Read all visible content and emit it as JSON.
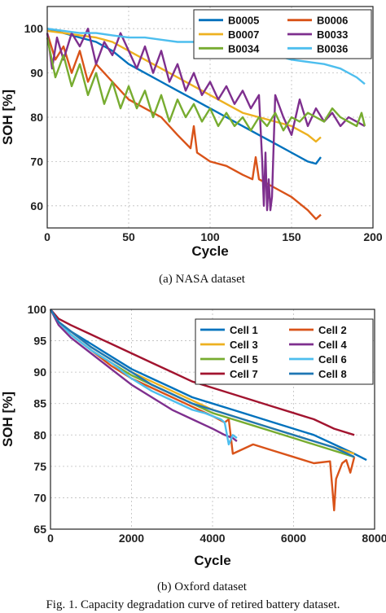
{
  "chart_data": [
    {
      "type": "line",
      "caption": "(a) NASA dataset",
      "xlabel": "Cycle",
      "ylabel": "SOH [%]",
      "xlim": [
        0,
        200
      ],
      "ylim": [
        55,
        105
      ],
      "xticks": [
        0,
        50,
        100,
        150,
        200
      ],
      "yticks": [
        60,
        70,
        80,
        90,
        100
      ],
      "grid": true,
      "legend": "top-right, 2 columns",
      "series": [
        {
          "name": "B0005",
          "color": "#0072BD",
          "x": [
            0,
            10,
            20,
            30,
            40,
            50,
            60,
            70,
            80,
            90,
            100,
            110,
            120,
            130,
            140,
            150,
            160,
            165,
            168
          ],
          "y": [
            100,
            99,
            98,
            97,
            95,
            92,
            90,
            88,
            86,
            84,
            82,
            80,
            78,
            76,
            74,
            72,
            70,
            69.5,
            71
          ]
        },
        {
          "name": "B0006",
          "color": "#D95319",
          "x": [
            0,
            5,
            10,
            15,
            20,
            25,
            30,
            40,
            50,
            60,
            70,
            80,
            88,
            90,
            92,
            100,
            110,
            120,
            126,
            128,
            130,
            140,
            150,
            160,
            165,
            168
          ],
          "y": [
            99,
            93,
            96,
            90,
            95,
            88,
            92,
            88,
            84,
            82,
            80,
            76,
            73,
            78,
            72,
            70,
            69,
            67,
            66,
            71,
            66,
            64,
            62,
            59,
            57,
            58
          ]
        },
        {
          "name": "B0007",
          "color": "#EDB120",
          "x": [
            0,
            10,
            20,
            30,
            40,
            50,
            60,
            70,
            80,
            90,
            100,
            110,
            120,
            130,
            140,
            150,
            160,
            165,
            168
          ],
          "y": [
            99.5,
            99,
            98.5,
            98,
            97,
            95,
            93,
            91,
            89,
            87,
            85,
            83,
            81,
            80,
            79,
            78,
            76,
            74.5,
            75.5
          ]
        },
        {
          "name": "B0033",
          "color": "#7E2F8E",
          "x": [
            0,
            3,
            6,
            10,
            15,
            20,
            25,
            30,
            35,
            40,
            45,
            50,
            55,
            60,
            65,
            70,
            75,
            80,
            85,
            90,
            95,
            100,
            105,
            110,
            115,
            120,
            125,
            130,
            132,
            133,
            134,
            135,
            136,
            137,
            138,
            140,
            145,
            150,
            155,
            160,
            165,
            170,
            175,
            180,
            185,
            190,
            195
          ],
          "y": [
            99,
            91,
            98,
            93,
            99,
            96,
            100,
            92,
            97,
            94,
            99,
            95,
            91,
            96,
            90,
            95,
            88,
            92,
            86,
            90,
            85,
            88,
            84,
            87,
            83,
            86,
            82,
            85,
            70,
            60,
            72,
            59,
            66,
            59,
            62,
            85,
            80,
            76,
            84,
            78,
            82,
            79,
            81,
            78,
            80,
            79,
            78
          ]
        },
        {
          "name": "B0034",
          "color": "#77AC30",
          "x": [
            0,
            5,
            10,
            15,
            20,
            25,
            30,
            35,
            40,
            45,
            50,
            55,
            60,
            65,
            70,
            75,
            80,
            85,
            90,
            95,
            100,
            105,
            110,
            115,
            120,
            125,
            130,
            135,
            140,
            145,
            150,
            155,
            160,
            165,
            170,
            175,
            180,
            185,
            190,
            193,
            195
          ],
          "y": [
            98,
            89,
            94,
            87,
            92,
            85,
            90,
            83,
            88,
            82,
            87,
            82,
            86,
            80,
            85,
            79,
            84,
            80,
            83,
            79,
            82,
            78,
            81,
            78,
            80,
            77,
            80,
            78,
            81,
            77,
            80,
            79,
            81,
            80,
            79,
            82,
            80,
            79,
            78,
            81,
            78
          ]
        },
        {
          "name": "B0036",
          "color": "#4DBEEE",
          "x": [
            0,
            10,
            20,
            30,
            40,
            50,
            60,
            70,
            80,
            90,
            100,
            110,
            120,
            130,
            140,
            150,
            160,
            170,
            180,
            190,
            195
          ],
          "y": [
            100,
            99.5,
            99,
            99,
            98.5,
            98,
            98,
            97.5,
            97,
            97,
            96,
            95.5,
            95,
            94.5,
            94,
            93,
            92.5,
            92,
            91,
            89,
            87.5
          ]
        }
      ]
    },
    {
      "type": "line",
      "caption": "(b) Oxford dataset",
      "xlabel": "Cycle",
      "ylabel": "SOH [%]",
      "xlim": [
        0,
        8000
      ],
      "ylim": [
        65,
        100
      ],
      "xticks": [
        0,
        2000,
        4000,
        6000,
        8000
      ],
      "yticks": [
        65,
        70,
        75,
        80,
        85,
        90,
        95,
        100
      ],
      "grid": true,
      "legend": "top-right, 2 columns",
      "series": [
        {
          "name": "Cell 1",
          "color": "#0072BD",
          "x": [
            0,
            200,
            500,
            1000,
            1500,
            2000,
            2500,
            3000,
            3500,
            4000,
            4500,
            5000,
            5500,
            6000,
            6500,
            7000,
            7500,
            7800
          ],
          "y": [
            100,
            98,
            96.5,
            94.5,
            92.5,
            90.5,
            89,
            87.5,
            86,
            85,
            84,
            83,
            82,
            81,
            80,
            78.5,
            77,
            76
          ]
        },
        {
          "name": "Cell 2",
          "color": "#D95319",
          "x": [
            0,
            200,
            500,
            1000,
            1500,
            2000,
            2500,
            3000,
            3500,
            4000,
            4300,
            4400,
            4500,
            5000,
            5500,
            6000,
            6500,
            6900,
            6950,
            7000,
            7050,
            7200,
            7300,
            7400,
            7500
          ],
          "y": [
            100,
            98,
            96,
            93.5,
            91,
            89,
            87.5,
            86,
            84.5,
            83,
            82,
            82.5,
            77,
            78.5,
            77.5,
            76.5,
            75.5,
            75.8,
            72,
            68,
            73,
            75.5,
            76,
            74,
            76.5
          ]
        },
        {
          "name": "Cell 3",
          "color": "#EDB120",
          "x": [
            0,
            200,
            500,
            1000,
            1500,
            2000,
            2500,
            3000,
            3500,
            4000,
            4500,
            5000,
            5500,
            6000,
            6500,
            7000,
            7500
          ],
          "y": [
            100,
            98,
            96.5,
            94,
            92,
            90,
            88.5,
            87,
            85.5,
            84,
            83,
            82,
            81,
            80,
            79,
            78,
            77
          ]
        },
        {
          "name": "Cell 4",
          "color": "#7E2F8E",
          "x": [
            0,
            200,
            500,
            1000,
            1500,
            2000,
            2500,
            3000,
            3500,
            4000,
            4300,
            4500,
            4600
          ],
          "y": [
            100,
            97.5,
            95.5,
            93,
            90.5,
            88,
            86,
            84,
            82.5,
            81,
            80,
            79.5,
            79
          ]
        },
        {
          "name": "Cell 5",
          "color": "#77AC30",
          "x": [
            0,
            200,
            500,
            1000,
            1500,
            2000,
            2500,
            3000,
            3500,
            4000,
            4500,
            5000,
            5500,
            6000,
            6500,
            7000,
            7500
          ],
          "y": [
            100,
            98,
            96,
            93.5,
            91.5,
            89.5,
            88,
            86.5,
            85,
            83.5,
            82.5,
            81.5,
            80.5,
            79.5,
            78.5,
            77.5,
            76.5
          ]
        },
        {
          "name": "Cell 6",
          "color": "#4DBEEE",
          "x": [
            0,
            200,
            500,
            1000,
            1500,
            2000,
            2500,
            3000,
            3500,
            3800,
            4000,
            4200,
            4300,
            4400,
            4500,
            4600
          ],
          "y": [
            100,
            98,
            96,
            93.5,
            91.5,
            89,
            87,
            85.5,
            84,
            83.5,
            83,
            82.5,
            82,
            78.5,
            80,
            79.5
          ]
        },
        {
          "name": "Cell 7",
          "color": "#A2142F",
          "x": [
            0,
            200,
            500,
            1000,
            1500,
            2000,
            2500,
            3000,
            3500,
            4000,
            4500,
            5000,
            5500,
            6000,
            6500,
            7000,
            7500
          ],
          "y": [
            100,
            98.5,
            97.5,
            96,
            94.5,
            93,
            91.5,
            90,
            88.5,
            87.5,
            86.5,
            85.5,
            84.5,
            83.5,
            82.5,
            81,
            80
          ]
        },
        {
          "name": "Cell 8",
          "color": "#1F77B4",
          "x": [
            0,
            200,
            500,
            1000,
            1500,
            2000,
            2500,
            3000,
            3500,
            4000,
            4500,
            5000,
            5500,
            6000,
            6500,
            7000,
            7500
          ],
          "y": [
            100,
            98,
            96.5,
            94,
            92,
            90,
            88,
            86.5,
            85,
            84,
            83,
            82,
            81,
            80,
            79,
            78,
            76.5
          ]
        }
      ]
    }
  ],
  "figure_caption": "Fig. 1. Capacity degradation curve of retired battery dataset."
}
